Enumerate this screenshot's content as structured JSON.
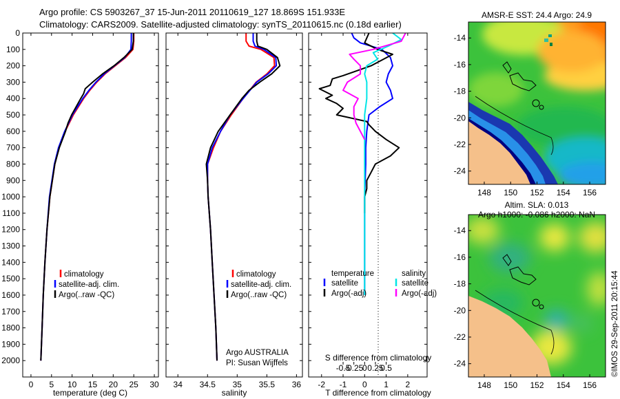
{
  "header": {
    "line1": "Argo profile: CS 5903267_37 15-Jun-2011 20110619_127 18.869S 151.933E",
    "line2": "Climatology: CARS2009. Satellite-adjusted climatology: synTS_20110615.nc (0.18d earlier)"
  },
  "colors": {
    "climatology": "#ff0000",
    "satellite": "#0000ff",
    "argo": "#000000",
    "sat_salinity": "#00e5e5",
    "argo_salinity_adj": "#ff00ff",
    "land": "#f5c08a"
  },
  "chart_data": [
    {
      "type": "line",
      "xlabel": "temperature (deg C)",
      "ylabel": "",
      "xlim": [
        -2,
        31
      ],
      "ylim": [
        2100,
        0
      ],
      "xticks": [
        0,
        5,
        10,
        15,
        20,
        25,
        30
      ],
      "yticks": [
        0,
        100,
        200,
        300,
        400,
        500,
        600,
        700,
        800,
        900,
        1000,
        1100,
        1200,
        1300,
        1400,
        1500,
        1600,
        1700,
        1800,
        1900,
        2000
      ],
      "legend": [
        "climatology",
        "satellite-adj. clim.",
        "Argo(..raw -QC)"
      ],
      "legend_position": "lower-center",
      "series": [
        {
          "name": "climatology",
          "color": "#ff0000",
          "depth": [
            0,
            50,
            100,
            150,
            200,
            250,
            300,
            350,
            400,
            500,
            600,
            700,
            800,
            1000,
            1200,
            1400,
            1600,
            1800,
            2000
          ],
          "values": [
            25.0,
            25.0,
            24.8,
            23.0,
            20.5,
            18.0,
            16.0,
            14.3,
            12.8,
            10.3,
            8.3,
            6.8,
            5.8,
            4.6,
            3.9,
            3.4,
            3.0,
            2.7,
            2.4
          ]
        },
        {
          "name": "satellite-adj. clim.",
          "color": "#0000ff",
          "depth": [
            0,
            50,
            100,
            150,
            200,
            250,
            300,
            350,
            400,
            500,
            600,
            700,
            800,
            1000,
            1200,
            1400,
            1600,
            1800,
            2000
          ],
          "values": [
            24.4,
            24.4,
            24.3,
            22.8,
            20.3,
            17.8,
            15.8,
            14.1,
            12.6,
            10.1,
            8.2,
            6.7,
            5.7,
            4.5,
            3.9,
            3.4,
            3.0,
            2.7,
            2.4
          ]
        },
        {
          "name": "Argo(..raw -QC)",
          "color": "#000000",
          "depth": [
            0,
            50,
            100,
            150,
            200,
            250,
            300,
            340,
            370,
            400,
            450,
            500,
            550,
            600,
            700,
            800,
            1000,
            1200,
            1400,
            1600,
            1800,
            2000
          ],
          "values": [
            24.9,
            24.9,
            24.6,
            22.6,
            20.2,
            17.4,
            15.0,
            13.2,
            12.8,
            12.1,
            11.0,
            9.9,
            9.0,
            8.4,
            6.9,
            5.8,
            4.6,
            3.9,
            3.4,
            3.0,
            2.7,
            2.4
          ]
        }
      ]
    },
    {
      "type": "line",
      "xlabel": "salinity",
      "ylabel": "",
      "xlim": [
        33.8,
        36.1
      ],
      "ylim": [
        2100,
        0
      ],
      "xticks": [
        34,
        34.5,
        35,
        35.5,
        36
      ],
      "legend": [
        "climatology",
        "satellite-adj. clim.",
        "Argo(..raw -QC)"
      ],
      "legend_position": "lower-center",
      "annotations": [
        "Argo AUSTRALIA",
        "PI: Susan Wijffels"
      ],
      "series": [
        {
          "name": "climatology",
          "color": "#ff0000",
          "depth": [
            0,
            50,
            80,
            100,
            150,
            200,
            250,
            300,
            400,
            500,
            600,
            700,
            800,
            900,
            1000,
            1200,
            1400,
            1600,
            1800,
            2000
          ],
          "values": [
            35.15,
            35.15,
            35.2,
            35.4,
            35.62,
            35.63,
            35.5,
            35.32,
            35.1,
            34.9,
            34.72,
            34.6,
            34.5,
            34.5,
            34.51,
            34.55,
            34.58,
            34.61,
            34.64,
            34.66
          ]
        },
        {
          "name": "satellite-adj. clim.",
          "color": "#0000ff",
          "depth": [
            0,
            50,
            80,
            100,
            150,
            200,
            250,
            300,
            400,
            500,
            600,
            700,
            800,
            900,
            1000,
            1200,
            1400,
            1600,
            1800,
            2000
          ],
          "values": [
            35.27,
            35.27,
            35.3,
            35.45,
            35.65,
            35.66,
            35.52,
            35.33,
            35.1,
            34.88,
            34.72,
            34.58,
            34.5,
            34.5,
            34.51,
            34.55,
            34.58,
            34.61,
            34.64,
            34.66
          ]
        },
        {
          "name": "Argo(..raw -QC)",
          "color": "#000000",
          "depth": [
            0,
            50,
            80,
            100,
            150,
            200,
            250,
            300,
            350,
            400,
            500,
            600,
            700,
            800,
            900,
            1000,
            1200,
            1400,
            1600,
            1800,
            2000
          ],
          "values": [
            35.33,
            35.33,
            35.35,
            35.5,
            35.68,
            35.72,
            35.58,
            35.38,
            35.2,
            35.08,
            34.88,
            34.68,
            34.55,
            34.48,
            34.5,
            34.51,
            34.55,
            34.58,
            34.61,
            34.64,
            34.66
          ]
        }
      ]
    },
    {
      "type": "line",
      "xlabel": "T difference from climatology",
      "xlabel_top": "S difference from climatology",
      "xlim": [
        -2.6,
        2.9
      ],
      "ylim": [
        2100,
        0
      ],
      "xticks": [
        -2,
        -1,
        0,
        1,
        2
      ],
      "xticks_s": [
        "-0.5",
        "-0.25",
        "0",
        "0.25",
        "0.5"
      ],
      "legend_temperature_title": "temperature",
      "legend_salinity_title": "salinity",
      "legend": [
        "satellite",
        "Argo(-adj)",
        "satellite",
        "Argo(-adj)"
      ],
      "series": [
        {
          "name": "satellite",
          "color": "#0000ff",
          "depth": [
            0,
            30,
            60,
            100,
            150,
            200,
            250,
            300,
            350,
            400,
            450,
            500,
            600,
            700,
            800,
            1000,
            1200,
            1400,
            1600
          ],
          "values": [
            -0.6,
            -0.5,
            -0.2,
            0.8,
            1.2,
            1.3,
            1.1,
            1.0,
            1.2,
            1.3,
            0.7,
            0.2,
            0.1,
            0.05,
            0.05,
            0.0,
            0.0,
            0.0,
            0.0
          ]
        },
        {
          "name": "Argo(-adj)",
          "color": "#000000",
          "depth": [
            0,
            60,
            100,
            130,
            200,
            260,
            280,
            320,
            340,
            380,
            400,
            430,
            460,
            500,
            540,
            560,
            600,
            650,
            700,
            750,
            800,
            850,
            900,
            950,
            1000,
            1100
          ],
          "values": [
            0.2,
            0.0,
            0.6,
            1.3,
            0.3,
            -1.0,
            -1.5,
            -1.6,
            -2.1,
            -1.5,
            -1.8,
            -1.3,
            -1.0,
            -1.3,
            0.1,
            0.2,
            0.5,
            1.0,
            1.6,
            1.2,
            0.5,
            0.3,
            0.1,
            0.1,
            0.0,
            0.0
          ]
        },
        {
          "name": "satellite",
          "color": "#00e5e5",
          "depth": [
            0,
            40,
            80,
            120,
            160,
            200,
            250,
            300,
            400,
            500,
            600,
            800,
            1000,
            1200,
            1400,
            1600
          ],
          "values": [
            1.3,
            1.7,
            1.1,
            0.4,
            0.6,
            0.1,
            0.0,
            0.1,
            0.1,
            0.0,
            0.0,
            0.0,
            0.0,
            0.0,
            0.0,
            0.0
          ]
        },
        {
          "name": "Argo(-adj)",
          "color": "#ff00ff",
          "depth": [
            0,
            50,
            100,
            130,
            160,
            200,
            250,
            300,
            350,
            400,
            450,
            500,
            550,
            600,
            650
          ],
          "values": [
            1.9,
            1.7,
            0.4,
            -0.7,
            -0.5,
            -0.2,
            -0.2,
            -0.8,
            -1.0,
            -0.3,
            -0.5,
            -0.5,
            -0.4,
            -0.2,
            0.0
          ]
        }
      ]
    },
    {
      "type": "heatmap",
      "title": "AMSR-E SST: 24.4 Argo: 24.9",
      "xticks": [
        "148",
        "150",
        "152",
        "154",
        "156"
      ],
      "yticks": [
        "-14",
        "-16",
        "-18",
        "-20",
        "-22",
        "-24"
      ],
      "xlim": [
        146.8,
        157.2
      ],
      "ylim": [
        -25,
        -12.8
      ]
    },
    {
      "type": "heatmap",
      "title": "Altim. SLA: 0.013",
      "subtitle": "Argo h1000: -0.086 h2000: NaN",
      "xticks": [
        "148",
        "150",
        "152",
        "154",
        "156"
      ],
      "yticks": [
        "-14",
        "-16",
        "-18",
        "-20",
        "-22",
        "-24"
      ],
      "xlim": [
        146.8,
        157.2
      ],
      "ylim": [
        -25,
        -12.8
      ]
    }
  ],
  "credit": "©IMOS 29-Sep-2011 20:15:44"
}
